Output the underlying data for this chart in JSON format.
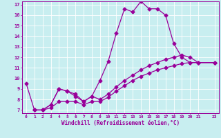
{
  "xlabel": "Windchill (Refroidissement éolien,°C)",
  "xlim": [
    -0.5,
    23.5
  ],
  "ylim": [
    6.7,
    17.3
  ],
  "xticks": [
    0,
    1,
    2,
    3,
    4,
    5,
    6,
    7,
    8,
    9,
    10,
    11,
    12,
    13,
    14,
    15,
    16,
    17,
    18,
    19,
    20,
    21,
    23
  ],
  "yticks": [
    7,
    8,
    9,
    10,
    11,
    12,
    13,
    14,
    15,
    16,
    17
  ],
  "bg_color": "#c8eef0",
  "line_color": "#990099",
  "line1_x": [
    0,
    1,
    2,
    3,
    4,
    5,
    6,
    7,
    8,
    9,
    10,
    11,
    12,
    13,
    14,
    15,
    16,
    17,
    18,
    19,
    20,
    21,
    23
  ],
  "line1_y": [
    9.5,
    7.0,
    7.0,
    7.5,
    9.0,
    8.8,
    8.5,
    7.8,
    8.3,
    9.8,
    11.6,
    14.3,
    16.6,
    16.3,
    17.3,
    16.6,
    16.6,
    16.0,
    13.3,
    12.0,
    11.5,
    11.5,
    11.5
  ],
  "line2_x": [
    1,
    2,
    3,
    4,
    5,
    6,
    7,
    8,
    9,
    10,
    11,
    12,
    13,
    14,
    15,
    16,
    17,
    18,
    19,
    20,
    21,
    23
  ],
  "line2_y": [
    7.0,
    7.0,
    7.5,
    9.0,
    8.8,
    8.3,
    7.8,
    8.3,
    8.0,
    8.5,
    9.2,
    9.8,
    10.3,
    10.8,
    11.2,
    11.5,
    11.8,
    12.0,
    12.2,
    12.0,
    11.5,
    11.5
  ],
  "line3_x": [
    1,
    2,
    3,
    4,
    5,
    6,
    7,
    8,
    9,
    10,
    11,
    12,
    13,
    14,
    15,
    16,
    17,
    18,
    19,
    20,
    21,
    23
  ],
  "line3_y": [
    7.0,
    7.0,
    7.2,
    7.8,
    7.8,
    7.8,
    7.5,
    7.8,
    7.8,
    8.2,
    8.8,
    9.3,
    9.8,
    10.2,
    10.5,
    10.8,
    11.0,
    11.2,
    11.4,
    11.5,
    11.5,
    11.5
  ]
}
